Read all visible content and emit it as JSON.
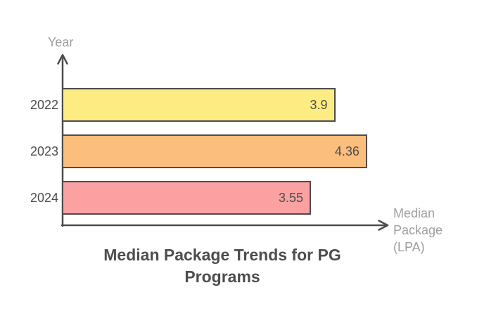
{
  "chart_data": {
    "type": "bar",
    "orientation": "horizontal",
    "title": "Median Package Trends for PG Programs",
    "title_lines": [
      "Median Package Trends for PG",
      "Programs"
    ],
    "categories": [
      "2022",
      "2023",
      "2024"
    ],
    "values": [
      3.9,
      4.36,
      3.55
    ],
    "value_labels": [
      "3.9",
      "4.36",
      "3.55"
    ],
    "bar_colors": [
      "#fcec82",
      "#fbbe7d",
      "#fba1a1"
    ],
    "ylabel": "Year",
    "xlabel": "Median Package (LPA)",
    "xlabel_lines": [
      "Median",
      "Package",
      "(LPA)"
    ],
    "xlim": [
      0,
      4.7
    ],
    "grid": false,
    "legend": "none"
  },
  "colors": {
    "background": "#ffffff",
    "axis": "#4d4d4d",
    "bar_border": "#4d4d4d",
    "tick_text": "#4d4d4d",
    "value_text": "#4d4d4d",
    "title_text": "#4d4d4d",
    "axis_title_gray": "#9e9e9e"
  }
}
